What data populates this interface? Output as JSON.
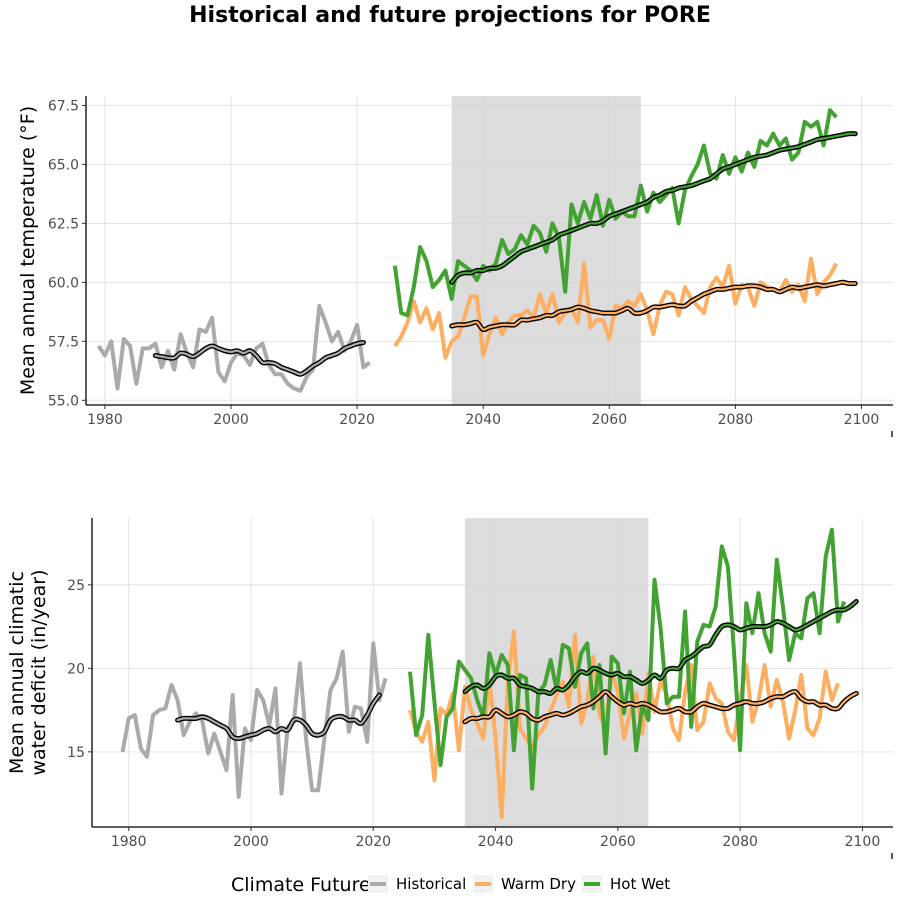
{
  "title": "Historical and future projections for PORE",
  "legend": {
    "title": "Climate Future",
    "items": [
      {
        "label": "Historical",
        "color": "#aaaaaa"
      },
      {
        "label": "Warm Dry",
        "color": "#fdae61"
      },
      {
        "label": "Hot Wet",
        "color": "#43a332"
      }
    ]
  },
  "chart_data": [
    {
      "type": "line",
      "ylabel": "Mean annual temperature (°F)",
      "xlabel": "",
      "xlim": [
        1977,
        2105
      ],
      "ylim": [
        54.8,
        67.9
      ],
      "xticks": [
        1980,
        2000,
        2020,
        2040,
        2060,
        2080,
        2100
      ],
      "yticks": [
        55.0,
        57.5,
        60.0,
        62.5,
        65.0,
        67.5
      ],
      "ytick_labels": [
        "55.0",
        "57.5",
        "60.0",
        "62.5",
        "65.0",
        "67.5"
      ],
      "shaded_period": [
        2035,
        2065
      ],
      "grid": true,
      "series": [
        {
          "name": "Historical",
          "color": "#aaaaaa",
          "x_start": 1979,
          "values": [
            57.3,
            56.9,
            57.5,
            55.5,
            57.6,
            57.3,
            55.7,
            57.2,
            57.2,
            57.4,
            56.4,
            57.1,
            56.3,
            57.8,
            57.0,
            56.4,
            58.0,
            57.9,
            58.5,
            56.2,
            55.8,
            56.6,
            57.0,
            56.9,
            56.5,
            57.2,
            57.4,
            56.5,
            56.1,
            56.1,
            55.7,
            55.5,
            55.4,
            56.0,
            56.3,
            59.0,
            58.3,
            57.5,
            57.9,
            57.1,
            57.5,
            58.2,
            56.4,
            56.6
          ]
        },
        {
          "name": "Warm Dry",
          "color": "#fdae61",
          "x_start": 2026,
          "values": [
            57.3,
            57.7,
            58.3,
            59.2,
            58.3,
            58.9,
            58.0,
            58.7,
            56.8,
            57.5,
            57.7,
            58.5,
            59.4,
            59.4,
            56.9,
            57.8,
            58.5,
            57.8,
            58.3,
            58.6,
            58.6,
            58.8,
            58.5,
            59.5,
            58.7,
            59.5,
            58.3,
            58.7,
            58.9,
            58.3,
            60.8,
            58.1,
            58.4,
            58.4,
            57.6,
            59.0,
            58.9,
            59.2,
            59.0,
            59.5,
            58.8,
            57.8,
            59.0,
            59.6,
            59.5,
            58.6,
            59.8,
            59.3,
            59.0,
            58.7,
            59.8,
            60.2,
            59.8,
            60.7,
            59.1,
            59.9,
            59.8,
            59.0,
            60.0,
            59.8,
            59.7,
            59.6,
            60.1,
            59.6,
            59.9,
            59.2,
            61.0,
            59.5,
            60.0,
            60.3,
            60.8
          ]
        },
        {
          "name": "Hot Wet",
          "color": "#43a332",
          "x_start": 2026,
          "values": [
            60.7,
            58.7,
            58.6,
            59.8,
            61.5,
            60.9,
            59.8,
            60.1,
            60.5,
            59.3,
            60.9,
            60.7,
            60.5,
            60.1,
            60.7,
            60.5,
            60.8,
            61.8,
            61.2,
            61.4,
            62.0,
            61.6,
            62.4,
            62.1,
            61.3,
            62.5,
            61.9,
            59.6,
            63.3,
            62.5,
            63.4,
            62.7,
            63.7,
            62.4,
            63.5,
            62.7,
            63.0,
            62.8,
            62.8,
            64.1,
            63.0,
            63.8,
            63.4,
            63.7,
            64.0,
            62.5,
            63.9,
            64.5,
            65.0,
            65.8,
            64.6,
            64.4,
            65.4,
            64.6,
            65.3,
            64.7,
            65.5,
            64.9,
            66.0,
            65.8,
            66.3,
            65.8,
            66.1,
            65.2,
            65.5,
            66.8,
            66.6,
            66.8,
            65.8,
            67.3,
            67.0
          ]
        },
        {
          "name": "Historical mean",
          "color": "#aaaaaa",
          "smooth": true,
          "x_start": 1988,
          "values": [
            56.9,
            56.85,
            56.8,
            56.8,
            57.0,
            56.95,
            56.85,
            57.0,
            57.2,
            57.3,
            57.2,
            57.1,
            57.05,
            57.1,
            57.0,
            57.1,
            56.9,
            56.6,
            56.6,
            56.55,
            56.4,
            56.3,
            56.2,
            56.1,
            56.25,
            56.45,
            56.6,
            56.8,
            56.9,
            57.0,
            57.2,
            57.3,
            57.4,
            57.45
          ]
        },
        {
          "name": "Warm Dry mean",
          "color": "#fdae61",
          "smooth": true,
          "x_start": 2035,
          "values": [
            58.15,
            58.2,
            58.2,
            58.25,
            58.3,
            58.0,
            58.1,
            58.15,
            58.2,
            58.2,
            58.2,
            58.4,
            58.4,
            58.45,
            58.5,
            58.6,
            58.6,
            58.75,
            58.8,
            58.85,
            58.95,
            58.9,
            58.8,
            58.75,
            58.7,
            58.7,
            58.7,
            58.8,
            58.9,
            58.7,
            58.7,
            58.8,
            58.95,
            58.95,
            59.0,
            59.05,
            59.0,
            59.0,
            59.2,
            59.35,
            59.5,
            59.6,
            59.7,
            59.7,
            59.75,
            59.8,
            59.8,
            59.85,
            59.85,
            59.8,
            59.7,
            59.7,
            59.6,
            59.7,
            59.8,
            59.75,
            59.8,
            59.85,
            59.9,
            59.85,
            59.9,
            59.95,
            60.0,
            59.95,
            59.95
          ]
        },
        {
          "name": "Hot Wet mean",
          "color": "#43a332",
          "smooth": true,
          "x_start": 2035,
          "values": [
            60.0,
            60.3,
            60.4,
            60.4,
            60.5,
            60.5,
            60.6,
            60.6,
            60.7,
            60.9,
            61.1,
            61.3,
            61.4,
            61.5,
            61.6,
            61.7,
            61.8,
            62.0,
            62.1,
            62.2,
            62.3,
            62.4,
            62.5,
            62.5,
            62.6,
            62.8,
            62.9,
            63.0,
            63.1,
            63.2,
            63.3,
            63.4,
            63.6,
            63.7,
            63.85,
            63.9,
            64.0,
            64.05,
            64.1,
            64.2,
            64.3,
            64.4,
            64.6,
            64.8,
            64.9,
            65.0,
            65.1,
            65.2,
            65.3,
            65.35,
            65.4,
            65.5,
            65.6,
            65.65,
            65.7,
            65.75,
            65.85,
            65.95,
            66.05,
            66.1,
            66.15,
            66.2,
            66.25,
            66.3,
            66.3
          ]
        }
      ]
    },
    {
      "type": "line",
      "ylabel": "Mean annual climatic water deficit (in/year)",
      "ylabel_lines": [
        "Mean annual climatic",
        "water deficit (in/year)"
      ],
      "xlabel": "",
      "xlim": [
        1974,
        2105
      ],
      "ylim": [
        10.5,
        29.0
      ],
      "xticks": [
        1980,
        2000,
        2020,
        2040,
        2060,
        2080,
        2100
      ],
      "yticks": [
        15,
        20,
        25
      ],
      "ytick_labels": [
        "15",
        "20",
        "25"
      ],
      "shaded_period": [
        2035,
        2065
      ],
      "grid": true,
      "series": [
        {
          "name": "Historical",
          "color": "#aaaaaa",
          "x_start": 1979,
          "values": [
            15.0,
            17.0,
            17.2,
            15.2,
            14.7,
            17.2,
            17.5,
            17.6,
            19.0,
            18.1,
            16.0,
            16.8,
            17.3,
            16.9,
            14.9,
            16.1,
            15.0,
            13.9,
            18.4,
            12.3,
            16.4,
            15.7,
            18.7,
            18.1,
            16.6,
            18.8,
            12.5,
            16.5,
            16.8,
            20.3,
            15.8,
            12.7,
            12.7,
            15.8,
            18.7,
            19.4,
            21.0,
            16.2,
            17.7,
            17.6,
            15.6,
            21.5,
            18.1,
            19.4
          ]
        },
        {
          "name": "Warm Dry",
          "color": "#fdae61",
          "x_start": 2026,
          "values": [
            17.5,
            16.2,
            15.6,
            16.8,
            13.3,
            17.6,
            17.2,
            18.5,
            15.1,
            18.9,
            17.5,
            16.7,
            15.8,
            19.3,
            15.8,
            11.1,
            19.2,
            22.2,
            16.4,
            15.8,
            15.3,
            16.0,
            16.5,
            17.5,
            18.4,
            19.2,
            17.7,
            22.0,
            16.7,
            18.0,
            20.7,
            17.2,
            16.5,
            19.8,
            18.6,
            15.8,
            17.4,
            18.5,
            16.1,
            19.7,
            17.4,
            19.3,
            18.4,
            16.4,
            15.7,
            18.6,
            20.2,
            16.3,
            16.8,
            19.1,
            18.2,
            17.9,
            16.2,
            15.7,
            18.1,
            20.2,
            16.8,
            18.1,
            20.2,
            17.7,
            19.3,
            18.0,
            15.8,
            17.5,
            19.6,
            16.4,
            16.0,
            17.0,
            19.8,
            18.1,
            19.1
          ]
        },
        {
          "name": "Hot Wet",
          "color": "#43a332",
          "x_start": 2026,
          "values": [
            19.8,
            16.0,
            17.2,
            22.0,
            18.0,
            14.2,
            17.1,
            17.6,
            20.4,
            19.9,
            19.4,
            18.1,
            17.1,
            20.9,
            19.6,
            20.8,
            20.2,
            15.1,
            19.6,
            19.4,
            12.8,
            18.6,
            19.0,
            20.5,
            18.7,
            21.4,
            21.2,
            18.9,
            20.9,
            21.5,
            17.6,
            20.2,
            14.9,
            20.7,
            20.3,
            17.3,
            19.8,
            15.1,
            17.8,
            16.9,
            25.3,
            22.4,
            17.9,
            18.3,
            18.3,
            23.4,
            16.5,
            21.6,
            22.6,
            22.5,
            23.7,
            27.3,
            26.1,
            21.0,
            15.1,
            23.9,
            22.1,
            24.5,
            22.1,
            21.0,
            26.5,
            23.7,
            20.5,
            22.1,
            21.8,
            24.2,
            24.5,
            22.1,
            26.7,
            28.3,
            22.8,
            24.0
          ]
        },
        {
          "name": "Historical mean",
          "color": "#aaaaaa",
          "smooth": true,
          "x_start": 1988,
          "values": [
            16.9,
            17.0,
            17.0,
            17.0,
            17.1,
            17.0,
            16.8,
            16.6,
            16.4,
            15.9,
            15.8,
            15.9,
            16.0,
            16.1,
            16.3,
            16.4,
            16.2,
            16.4,
            16.3,
            16.9,
            16.9,
            16.6,
            16.1,
            16.0,
            16.2,
            16.9,
            17.1,
            17.1,
            16.9,
            16.9,
            16.7,
            17.2,
            17.9,
            18.4
          ]
        },
        {
          "name": "Warm Dry mean",
          "color": "#fdae61",
          "smooth": true,
          "x_start": 2035,
          "values": [
            16.8,
            17.0,
            17.0,
            17.1,
            17.1,
            17.5,
            17.3,
            17.1,
            17.2,
            17.4,
            17.3,
            17.0,
            16.9,
            17.1,
            17.2,
            17.3,
            17.2,
            17.3,
            17.5,
            17.7,
            17.8,
            18.0,
            18.3,
            18.6,
            18.3,
            18.0,
            17.8,
            17.9,
            17.8,
            17.9,
            17.8,
            17.6,
            17.4,
            17.4,
            17.5,
            17.6,
            17.4,
            17.4,
            17.7,
            17.9,
            17.8,
            17.7,
            17.6,
            17.6,
            17.8,
            17.9,
            18.0,
            17.9,
            17.9,
            18.0,
            18.2,
            18.3,
            18.3,
            18.5,
            18.6,
            18.2,
            18.0,
            18.0,
            17.8,
            17.8,
            17.6,
            17.6,
            18.0,
            18.3,
            18.5
          ]
        },
        {
          "name": "Hot Wet mean",
          "color": "#43a332",
          "smooth": true,
          "x_start": 2035,
          "values": [
            18.6,
            18.9,
            19.0,
            18.8,
            19.0,
            19.5,
            19.6,
            19.4,
            19.4,
            19.0,
            18.9,
            18.8,
            18.6,
            18.6,
            18.5,
            18.8,
            18.7,
            19.0,
            19.5,
            19.8,
            19.7,
            20.0,
            19.9,
            19.7,
            19.6,
            19.7,
            19.5,
            19.5,
            19.3,
            19.1,
            19.3,
            19.6,
            19.4,
            19.9,
            20.0,
            20.0,
            20.5,
            20.7,
            21.0,
            21.3,
            21.4,
            22.0,
            22.5,
            22.6,
            22.5,
            22.3,
            22.4,
            22.5,
            22.5,
            22.5,
            22.6,
            22.8,
            22.7,
            22.5,
            22.3,
            22.4,
            22.6,
            22.8,
            23.0,
            23.2,
            23.4,
            23.5,
            23.5,
            23.7,
            24.0
          ]
        }
      ]
    }
  ]
}
